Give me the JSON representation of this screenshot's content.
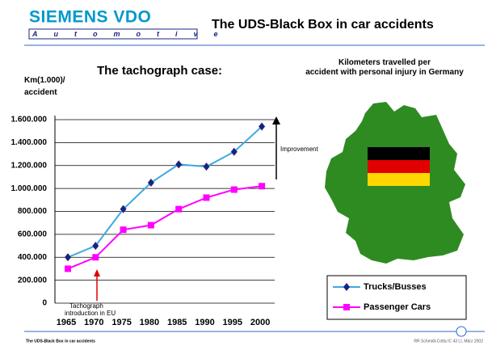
{
  "header": {
    "logo": "SIEMENS VDO",
    "logo_sub": "Automotive",
    "title": "The UDS-Black Box in car accidents"
  },
  "map_caption": "Kilometers travelled per accident with personal injury in Germany",
  "footer": {
    "left": "The UDS-Black Box in car accidents",
    "right": "RR Schmidt-Cotta IC 43 LI, März 2002"
  },
  "chart_data": {
    "type": "line",
    "title": "The tachograph case:",
    "y_label": "Km(1.000)/ accident",
    "categories": [
      "1965",
      "1970",
      "1975",
      "1980",
      "1985",
      "1990",
      "1995",
      "2000"
    ],
    "series": [
      {
        "name": "Trucks/Busses",
        "color": "#3fa9e0",
        "marker_color": "#1a237e",
        "marker": "diamond",
        "values": [
          400000,
          500000,
          820000,
          1050000,
          1210000,
          1190000,
          1320000,
          1540000
        ]
      },
      {
        "name": "Passenger Cars",
        "color": "#ff00ff",
        "marker_color": "#ff00ff",
        "marker": "square",
        "values": [
          300000,
          400000,
          640000,
          680000,
          820000,
          920000,
          990000,
          1020000
        ]
      }
    ],
    "ylim": [
      0,
      1600000
    ],
    "yticks": [
      0,
      {
        "value": 200000,
        "label": "200.000"
      },
      {
        "value": 400000,
        "label": "400.000"
      },
      {
        "value": 600000,
        "label": "600.000"
      },
      {
        "value": 800000,
        "label": "800.000"
      },
      {
        "value": 1000000,
        "label": "1.000.000"
      },
      {
        "value": 1200000,
        "label": "1.200.000"
      },
      {
        "value": 1400000,
        "label": "1.400.000"
      },
      {
        "value": 1600000,
        "label": "1.600.000"
      }
    ],
    "grid": true,
    "legend": "lower right",
    "annotations": {
      "improvement": "Improvement",
      "tachograph": "Tachograph introduction in EU"
    }
  }
}
